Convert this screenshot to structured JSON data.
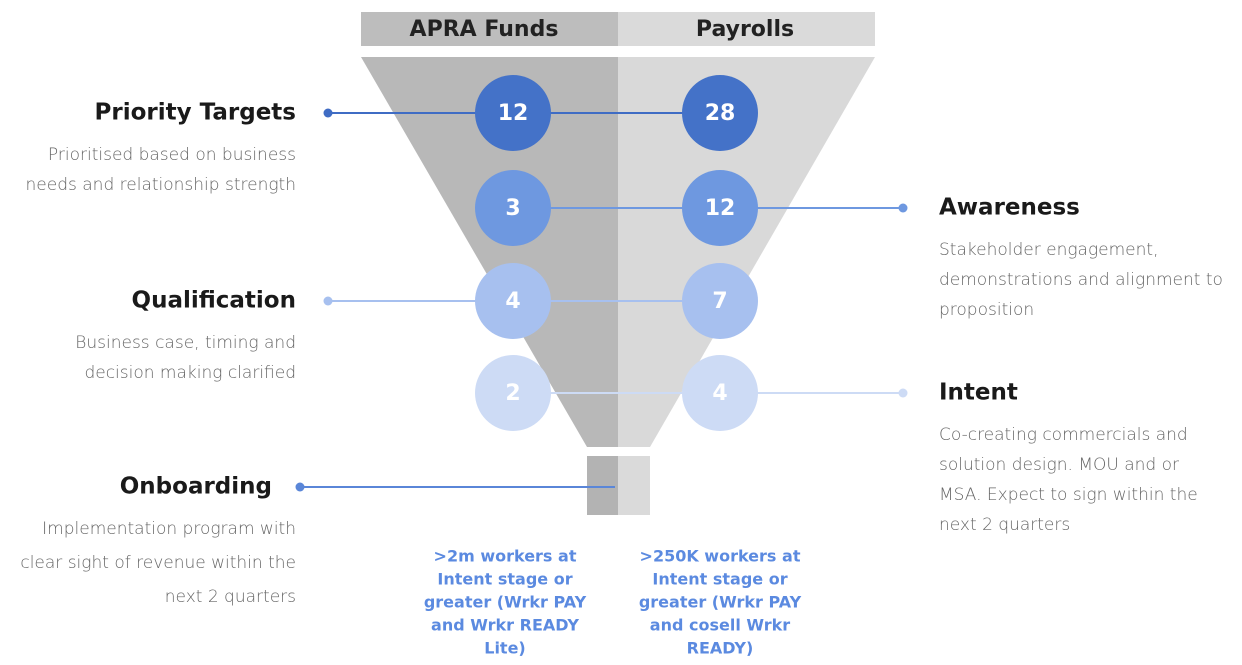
{
  "columns": [
    "APRA Funds",
    "Payrolls"
  ],
  "stages": [
    {
      "label": "Priority Targets",
      "side": "left",
      "description": [
        "Prioritised based on business",
        "needs and relationship strength"
      ],
      "values": [
        "12",
        "28"
      ]
    },
    {
      "label": "Awareness",
      "side": "right",
      "description": [
        "Stakeholder engagement,",
        "demonstrations and alignment to",
        "proposition"
      ],
      "values": [
        "3",
        "12"
      ]
    },
    {
      "label": "Qualification",
      "side": "left",
      "description": [
        "Business case, timing and",
        "decision making clarified"
      ],
      "values": [
        "4",
        "7"
      ]
    },
    {
      "label": "Intent",
      "side": "right",
      "description": [
        "Co-creating commercials and",
        "solution design. MOU and or",
        "MSA. Expect to sign within the",
        "next 2 quarters"
      ],
      "values": [
        "2",
        "4"
      ]
    }
  ],
  "onboarding": {
    "label": "Onboarding",
    "description": [
      "Implementation program with",
      "clear sight of revenue within the",
      "next 2 quarters"
    ]
  },
  "footnotes": [
    [
      ">2m workers at",
      "Intent stage or",
      "greater (Wrkr PAY",
      "and Wrkr READY",
      "Lite)"
    ],
    [
      ">250K workers at",
      "Intent stage or",
      "greater (Wrkr PAY",
      "and cosell Wrkr",
      "READY)"
    ]
  ]
}
